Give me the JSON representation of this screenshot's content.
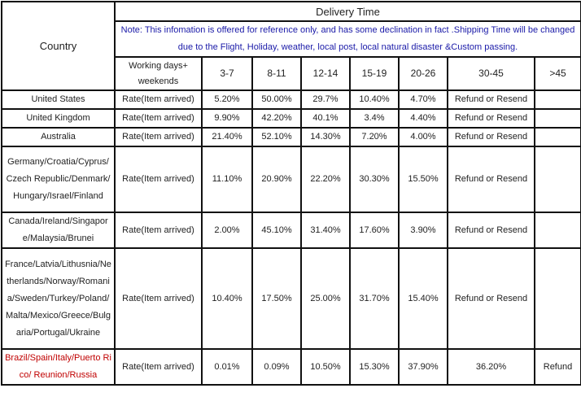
{
  "header": {
    "country_label": "Country",
    "delivery_time_label": "Delivery Time",
    "note": "Note: This infomation is offered for reference only, and has some declination in fact .Shipping Time will be changed due to the Flight, Holiday, weather, local post, local natural disaster &Custom passing.",
    "working_days_label": "Working days+ weekends",
    "ranges": [
      "3-7",
      "8-11",
      "12-14",
      "15-19",
      "20-26",
      "30-45",
      ">45"
    ]
  },
  "rows": [
    {
      "country": "United States",
      "label": "Rate(Item arrived)",
      "values": [
        "5.20%",
        "50.00%",
        "29.7%",
        "10.40%",
        "4.70%",
        "Refund or Resend",
        ""
      ],
      "highlight": false
    },
    {
      "country": "United Kingdom",
      "label": "Rate(Item arrived)",
      "values": [
        "9.90%",
        "42.20%",
        "40.1%",
        "3.4%",
        "4.40%",
        "Refund or Resend",
        ""
      ],
      "highlight": false
    },
    {
      "country": "Australia",
      "label": "Rate(Item arrived)",
      "values": [
        "21.40%",
        "52.10%",
        "14.30%",
        "7.20%",
        "4.00%",
        "Refund or Resend",
        ""
      ],
      "highlight": false
    },
    {
      "country": "Germany/Croatia/Cyprus/Czech Republic/Denmark/Hungary/Israel/Finland",
      "label": "Rate(Item arrived)",
      "values": [
        "11.10%",
        "20.90%",
        "22.20%",
        "30.30%",
        "15.50%",
        "Refund or Resend",
        ""
      ],
      "highlight": false
    },
    {
      "country": "Canada/Ireland/Singapore/Malaysia/Brunei",
      "label": "Rate(Item arrived)",
      "values": [
        "2.00%",
        "45.10%",
        "31.40%",
        "17.60%",
        "3.90%",
        "Refund or Resend",
        ""
      ],
      "highlight": false
    },
    {
      "country": "France/Latvia/Lithusnia/Netherlands/Norway/Romania/Sweden/Turkey/Poland/Malta/Mexico/Greece/Bulgaria/Portugal/Ukraine",
      "label": "Rate(Item arrived)",
      "values": [
        "10.40%",
        "17.50%",
        "25.00%",
        "31.70%",
        "15.40%",
        "Refund or Resend",
        ""
      ],
      "highlight": false
    },
    {
      "country": "Brazil/Spain/Italy/Puerto Rico/ Reunion/Russia",
      "label": "Rate(Item arrived)",
      "values": [
        "0.01%",
        "0.09%",
        "10.50%",
        "15.30%",
        "37.90%",
        "36.20%",
        "Refund"
      ],
      "highlight": true
    }
  ],
  "colors": {
    "note": "#1a1aa8",
    "highlight_country": "#c00000",
    "border": "#111111"
  }
}
